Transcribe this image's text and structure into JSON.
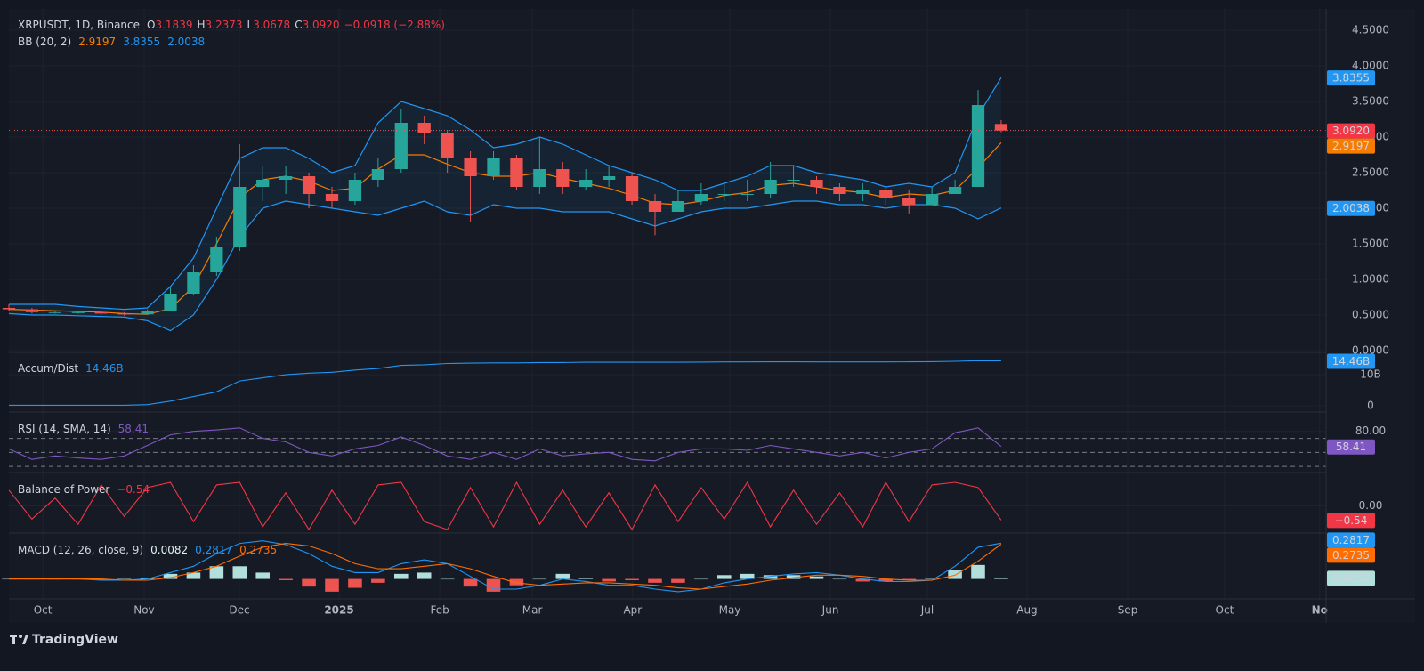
{
  "chart_data": {
    "type": "candlestick",
    "title": "XRPUSDT, 1D, Binance",
    "ohlc_names": [
      "O",
      "H",
      "L",
      "C"
    ],
    "ohlc_labels": [
      "3.1839",
      "3.2373",
      "3.0678",
      "3.0920"
    ],
    "change_label": "−0.0918 (−2.88%)",
    "up_color": "#26a69a",
    "down_color": "#ef5350",
    "xlim": [
      0,
      57.08
    ],
    "xticks": [
      {
        "value": 1.47,
        "label": "Oct"
      },
      {
        "value": 5.86,
        "label": "Nov"
      },
      {
        "value": 9.99,
        "label": "Dec"
      },
      {
        "value": 14.31,
        "label": "2025"
      },
      {
        "value": 18.67,
        "label": "Feb"
      },
      {
        "value": 22.68,
        "label": "Mar"
      },
      {
        "value": 27.03,
        "label": "Apr"
      },
      {
        "value": 31.24,
        "label": "May"
      },
      {
        "value": 35.6,
        "label": "Jun"
      },
      {
        "value": 39.8,
        "label": "Jul"
      },
      {
        "value": 44.12,
        "label": "Aug"
      },
      {
        "value": 48.48,
        "label": "Sep"
      },
      {
        "value": 52.68,
        "label": "Oct"
      },
      {
        "value": 56.8,
        "label": "No"
      }
    ],
    "ylim": [
      -0.0125,
      4.8
    ],
    "yticks": [
      {
        "value": 0,
        "label": "0.0000"
      },
      {
        "value": 0.5,
        "label": "0.5000"
      },
      {
        "value": 1,
        "label": "1.0000"
      },
      {
        "value": 1.5,
        "label": "1.5000"
      },
      {
        "value": 2,
        "label": "2.0000"
      },
      {
        "value": 2.5,
        "label": "2.5000"
      },
      {
        "value": 3,
        "label": "3.0000"
      },
      {
        "value": 3.5,
        "label": "3.5000"
      },
      {
        "value": 4,
        "label": "4.0000"
      },
      {
        "value": 4.5,
        "label": "4.5000"
      }
    ],
    "open": [
      0.6,
      0.58,
      0.54,
      0.54,
      0.54,
      0.52,
      0.51,
      0.55,
      0.8,
      1.1,
      1.45,
      2.3,
      2.4,
      2.45,
      2.2,
      2.1,
      2.4,
      2.55,
      3.2,
      3.05,
      2.7,
      2.45,
      2.7,
      2.3,
      2.55,
      2.3,
      2.4,
      2.45,
      2.1,
      1.95,
      2.1,
      2.2,
      2.2,
      2.2,
      2.4,
      2.4,
      2.3,
      2.2,
      2.25,
      2.15,
      2.05,
      2.2,
      2.3,
      3.1839
    ],
    "high": [
      0.65,
      0.6,
      0.56,
      0.56,
      0.56,
      0.54,
      0.58,
      0.9,
      1.2,
      1.6,
      2.9,
      2.6,
      2.6,
      2.5,
      2.3,
      2.5,
      2.7,
      3.4,
      3.3,
      3.1,
      2.8,
      2.8,
      2.75,
      3.0,
      2.65,
      2.55,
      2.6,
      2.5,
      2.2,
      2.25,
      2.35,
      2.35,
      2.4,
      2.65,
      2.6,
      2.45,
      2.35,
      2.35,
      2.3,
      2.25,
      2.3,
      2.4,
      3.66,
      3.2373
    ],
    "low": [
      0.56,
      0.52,
      0.52,
      0.52,
      0.5,
      0.49,
      0.5,
      0.55,
      0.78,
      1.05,
      1.4,
      2.1,
      2.2,
      2.0,
      2.0,
      2.05,
      2.3,
      2.5,
      2.9,
      2.5,
      1.8,
      2.4,
      2.25,
      2.2,
      2.2,
      2.25,
      2.3,
      2.05,
      1.62,
      1.95,
      2.05,
      2.1,
      2.1,
      2.15,
      2.3,
      2.2,
      2.1,
      2.1,
      2.05,
      1.92,
      2.05,
      2.2,
      2.3,
      3.0678
    ],
    "close": [
      0.58,
      0.54,
      0.54,
      0.54,
      0.52,
      0.51,
      0.55,
      0.8,
      1.1,
      1.45,
      2.3,
      2.4,
      2.45,
      2.2,
      2.1,
      2.4,
      2.55,
      3.2,
      3.05,
      2.7,
      2.45,
      2.7,
      2.3,
      2.55,
      2.3,
      2.4,
      2.45,
      2.1,
      1.95,
      2.1,
      2.2,
      2.2,
      2.2,
      2.4,
      2.4,
      2.3,
      2.2,
      2.25,
      2.15,
      2.05,
      2.2,
      2.3,
      3.45,
      3.092
    ],
    "bb": {
      "name": "BB (20, 2)",
      "mid_color": "#f57c00",
      "band_color": "#2196f3",
      "mid": [
        0.58,
        0.57,
        0.56,
        0.55,
        0.54,
        0.52,
        0.51,
        0.59,
        0.9,
        1.5,
        2.15,
        2.4,
        2.45,
        2.38,
        2.25,
        2.28,
        2.55,
        2.75,
        2.75,
        2.62,
        2.5,
        2.45,
        2.45,
        2.5,
        2.42,
        2.35,
        2.28,
        2.18,
        2.07,
        2.05,
        2.1,
        2.18,
        2.22,
        2.32,
        2.35,
        2.3,
        2.25,
        2.22,
        2.15,
        2.2,
        2.18,
        2.25,
        2.57,
        2.9197
      ],
      "upper": [
        0.65,
        0.65,
        0.65,
        0.62,
        0.6,
        0.58,
        0.6,
        0.9,
        1.3,
        2.0,
        2.7,
        2.85,
        2.85,
        2.7,
        2.5,
        2.6,
        3.2,
        3.5,
        3.4,
        3.3,
        3.1,
        2.85,
        2.9,
        3.0,
        2.9,
        2.75,
        2.6,
        2.5,
        2.4,
        2.25,
        2.25,
        2.35,
        2.45,
        2.6,
        2.6,
        2.5,
        2.45,
        2.4,
        2.3,
        2.35,
        2.3,
        2.5,
        3.3,
        3.8355
      ],
      "lower": [
        0.52,
        0.5,
        0.5,
        0.49,
        0.48,
        0.47,
        0.42,
        0.28,
        0.5,
        1.0,
        1.6,
        2.0,
        2.1,
        2.05,
        2.0,
        1.95,
        1.9,
        2.0,
        2.1,
        1.95,
        1.9,
        2.05,
        2.0,
        2.0,
        1.95,
        1.95,
        1.95,
        1.85,
        1.75,
        1.85,
        1.95,
        2.0,
        2.0,
        2.05,
        2.1,
        2.1,
        2.05,
        2.05,
        2.0,
        2.05,
        2.05,
        2.0,
        1.85,
        2.0038
      ]
    },
    "panes": [
      {
        "type": "line",
        "name": "Accum/Dist",
        "color": "#2196f3",
        "value_label": "14.46B",
        "ylim": [
          -1.7,
          16.6
        ],
        "yticks": [
          {
            "value": 10,
            "label": "10B"
          },
          0
        ],
        "values": [
          0.2,
          0.2,
          0.2,
          0.2,
          0.2,
          0.2,
          0.4,
          1.5,
          3,
          4.5,
          8,
          9,
          10,
          10.5,
          10.8,
          11.5,
          12,
          13,
          13.2,
          13.6,
          13.7,
          13.8,
          13.8,
          13.9,
          13.9,
          14,
          14,
          14,
          14,
          14,
          14.05,
          14.1,
          14.1,
          14.15,
          14.15,
          14.1,
          14.1,
          14.1,
          14.1,
          14.15,
          14.2,
          14.3,
          14.5,
          14.46
        ]
      },
      {
        "type": "line",
        "name": "RSI (14, SMA, 14)",
        "color": "#7e57c2",
        "ylim": [
          22.5,
          103.75
        ],
        "yticks": [
          {
            "value": 80,
            "label": "80.00"
          }
        ],
        "bands": [
          70,
          50,
          30
        ],
        "values": [
          55,
          40,
          45,
          42,
          40,
          45,
          60,
          75,
          80,
          82,
          85,
          70,
          65,
          50,
          45,
          55,
          60,
          72,
          60,
          45,
          40,
          50,
          40,
          55,
          45,
          48,
          50,
          40,
          38,
          50,
          55,
          55,
          53,
          60,
          55,
          50,
          45,
          50,
          42,
          50,
          55,
          78,
          85,
          58.41
        ]
      },
      {
        "type": "line",
        "name": "Balance of Power",
        "color": "#f23645",
        "value_label": "−0.54",
        "ylim": [
          -1,
          1.17
        ],
        "yticks": [
          {
            "value": 0,
            "label": "0.00"
          }
        ],
        "values": [
          0.6,
          -0.5,
          0.3,
          -0.7,
          0.8,
          -0.4,
          0.7,
          0.9,
          -0.6,
          0.8,
          0.9,
          -0.8,
          0.5,
          -0.9,
          0.6,
          -0.7,
          0.8,
          0.9,
          -0.6,
          -0.9,
          0.7,
          -0.8,
          0.9,
          -0.7,
          0.6,
          -0.8,
          0.5,
          -0.9,
          0.8,
          -0.6,
          0.7,
          -0.5,
          0.9,
          -0.8,
          0.6,
          -0.7,
          0.5,
          -0.8,
          0.9,
          -0.6,
          0.8,
          0.9,
          0.7,
          -0.54
        ]
      },
      {
        "type": "macd",
        "name": "MACD (12, 26, close, 9)",
        "ylim": [
          -0.15,
          0.34
        ],
        "yticks": [],
        "histogram_color": "#b2dfdb",
        "macd_color": "#2196f3",
        "signal_color": "#ff6d00",
        "histogram": [
          0,
          0,
          0,
          0,
          -0.01,
          0,
          0.01,
          0.04,
          0.05,
          0.1,
          0.1,
          0.05,
          -0.01,
          -0.06,
          -0.1,
          -0.07,
          -0.03,
          0.04,
          0.05,
          0,
          -0.06,
          -0.1,
          -0.05,
          0,
          0.04,
          0.01,
          -0.02,
          -0.01,
          -0.03,
          -0.03,
          0,
          0.03,
          0.04,
          0.03,
          0.03,
          0.02,
          0,
          -0.02,
          -0.02,
          -0.01,
          0,
          0.07,
          0.11,
          0.0082
        ],
        "macd": [
          0,
          0,
          0,
          0,
          -0.01,
          -0.01,
          0,
          0.05,
          0.1,
          0.2,
          0.28,
          0.3,
          0.27,
          0.2,
          0.1,
          0.05,
          0.05,
          0.12,
          0.15,
          0.12,
          0.02,
          -0.08,
          -0.08,
          -0.05,
          0,
          -0.02,
          -0.05,
          -0.05,
          -0.08,
          -0.1,
          -0.08,
          -0.03,
          0,
          0.02,
          0.04,
          0.05,
          0.03,
          0,
          -0.02,
          -0.02,
          -0.01,
          0.1,
          0.25,
          0.2817
        ],
        "signal": [
          0,
          0,
          0,
          0,
          0,
          -0.01,
          -0.01,
          0.01,
          0.05,
          0.1,
          0.18,
          0.25,
          0.28,
          0.26,
          0.2,
          0.12,
          0.08,
          0.08,
          0.1,
          0.12,
          0.08,
          0.02,
          -0.03,
          -0.05,
          -0.04,
          -0.03,
          -0.03,
          -0.04,
          -0.05,
          -0.07,
          -0.08,
          -0.06,
          -0.04,
          -0.01,
          0.01,
          0.03,
          0.03,
          0.02,
          0,
          -0.01,
          -0.01,
          0.03,
          0.14,
          0.2735
        ]
      }
    ],
    "brand": "TradingView"
  }
}
